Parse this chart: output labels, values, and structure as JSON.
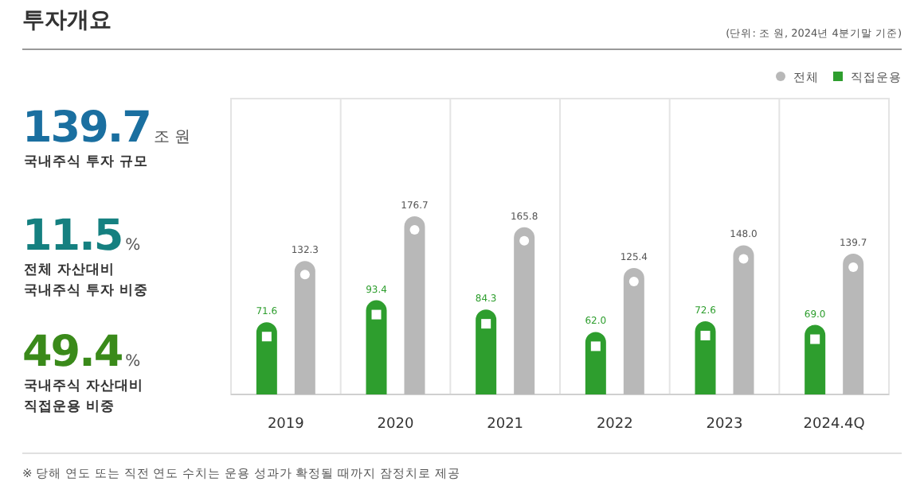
{
  "chart_data": [
    {
      "type": "other",
      "title": "투자개요",
      "annotations": [
        "139.7",
        "조 원",
        "국내주식 투자 규모",
        "11.5",
        "%",
        "전체 자산대비",
        "국내주식 투자 비중",
        "49.4",
        "%",
        "국내주식 자산대비",
        "직접운용 비중"
      ]
    },
    {
      "type": "bar",
      "categories": [
        "2019",
        "2020",
        "2021",
        "2022",
        "2023",
        "2024.4Q"
      ],
      "series": [
        {
          "name": "직접운용",
          "color": "#2e9e2e",
          "values": [
            71.6,
            93.4,
            84.3,
            62.0,
            72.6,
            69.0
          ],
          "value_labels": [
            "71.6",
            "93.4",
            "84.3",
            "62.0",
            "72.6",
            "69.0"
          ]
        },
        {
          "name": "전체",
          "color": "#b8b8b8",
          "values": [
            132.3,
            176.7,
            165.8,
            125.4,
            148.0,
            139.7
          ],
          "value_labels": [
            "132.3",
            "176.7",
            "165.8",
            "125.4",
            "148.0",
            "139.7"
          ]
        }
      ],
      "legend": "top right",
      "annotations": [
        "(단위: 조 원, 2024년 4분기말 기준)",
        "※ 당해 연도 또는 직전 연도 수치는 운용 성과가 확정될 때까지 잠정치로 제공"
      ]
    }
  ]
}
